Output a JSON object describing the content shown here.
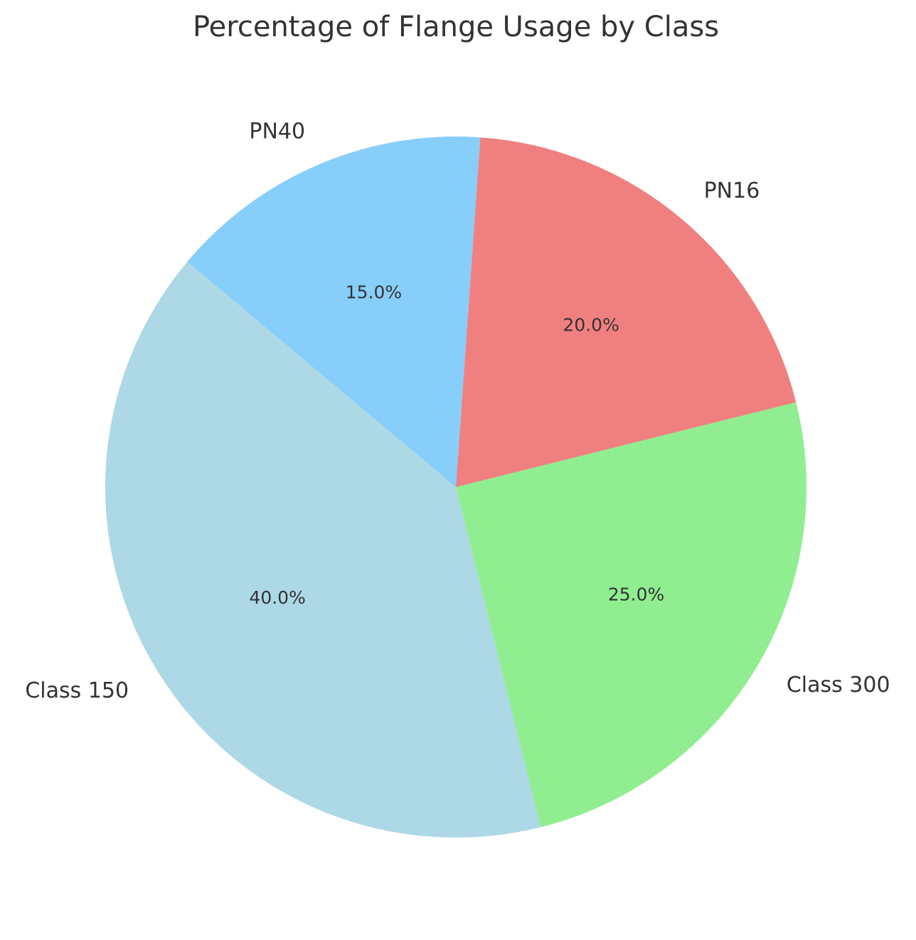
{
  "chart_data": {
    "type": "pie",
    "title": "Percentage of Flange Usage by Class",
    "categories": [
      "Class 150",
      "Class 300",
      "PN16",
      "PN40"
    ],
    "values": [
      40,
      25,
      20,
      15
    ],
    "value_labels": [
      "40.0%",
      "25.0%",
      "20.0%",
      "15.0%"
    ],
    "colors": [
      "#add8e6",
      "#90ee90",
      "#f08080",
      "#87cefa"
    ]
  }
}
